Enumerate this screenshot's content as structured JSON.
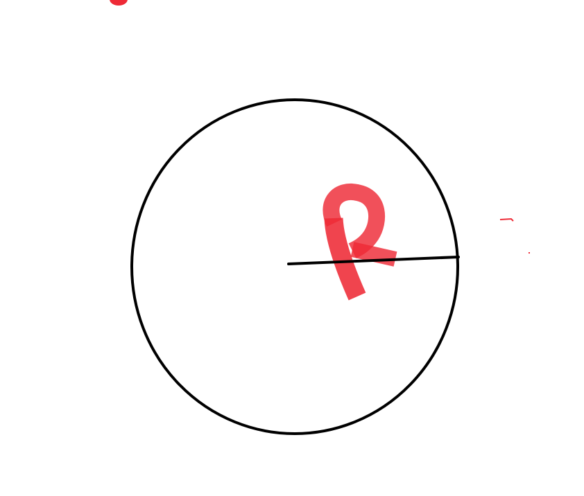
{
  "diagram": {
    "background_color": "#ffffff",
    "circle": {
      "stroke_color": "#000000"
    },
    "radius_line": {
      "stroke_color": "#000000"
    },
    "radius_label": {
      "text": "R",
      "color": "#ee2a36"
    },
    "stray_marks": {
      "color": "#ee2a36"
    }
  }
}
